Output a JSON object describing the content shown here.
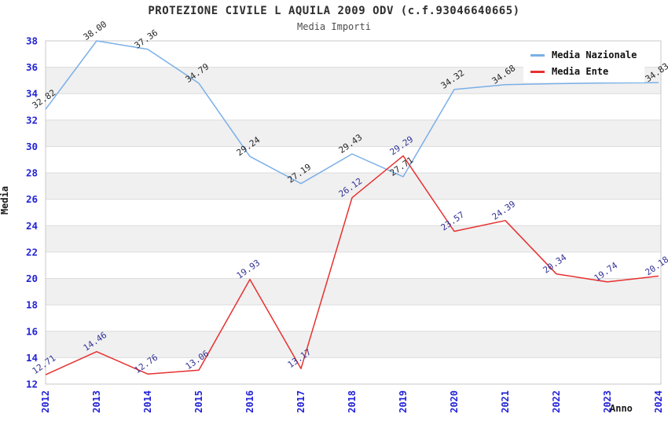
{
  "title": "PROTEZIONE CIVILE L AQUILA 2009 ODV (c.f.93046640665)",
  "subtitle": "Media Importi",
  "axes": {
    "y_label": "Media",
    "x_label": "Anno"
  },
  "legend": {
    "items": [
      {
        "label": "Media Nazionale",
        "color": "#7aafe8"
      },
      {
        "label": "Media Ente",
        "color": "#e83030"
      }
    ]
  },
  "colors": {
    "tick_label_blue": "#2323d7",
    "national_point_label": "#262626",
    "ente_point_label": "#323296",
    "band_gray": "#f0f0f0",
    "gridline": "#dcdcdc",
    "plot_border": "#c9c9c9"
  },
  "chart_data": {
    "type": "line",
    "title": "PROTEZIONE CIVILE L AQUILA 2009 ODV (c.f.93046640665)",
    "subtitle": "Media Importi",
    "xlabel": "Anno",
    "ylabel": "Media",
    "categories": [
      "2012",
      "2013",
      "2014",
      "2015",
      "2016",
      "2017",
      "2018",
      "2019",
      "2020",
      "2021",
      "2022",
      "2023",
      "2024"
    ],
    "ylim": [
      12,
      38
    ],
    "y_ticks": [
      12,
      14,
      16,
      18,
      20,
      22,
      24,
      26,
      28,
      30,
      32,
      34,
      36,
      38
    ],
    "grid": "horizontal-bands-alternating",
    "legend_position": "top-right",
    "series": [
      {
        "name": "Media Nazionale",
        "color": "#7aafe8",
        "label_color": "#262626",
        "values": [
          32.82,
          38.0,
          37.36,
          34.79,
          29.24,
          27.19,
          29.43,
          27.71,
          34.32,
          34.68,
          34.76,
          34.81,
          34.83
        ],
        "point_labels": [
          "32.82",
          "38.00",
          "37.36",
          "34.79",
          "29.24",
          "27.19",
          "29.43",
          "27.71",
          "34.32",
          "34.68",
          null,
          null,
          "34.83"
        ]
      },
      {
        "name": "Media Ente",
        "color": "#e83030",
        "label_color": "#323296",
        "values": [
          12.71,
          14.46,
          12.76,
          13.06,
          19.93,
          13.17,
          26.12,
          29.29,
          23.57,
          24.39,
          20.34,
          19.74,
          20.18
        ],
        "point_labels": [
          "12.71",
          "14.46",
          "12.76",
          "13.06",
          "19.93",
          "13.17",
          "26.12",
          "29.29",
          "23.57",
          "24.39",
          "20.34",
          "19.74",
          "20.18"
        ]
      }
    ]
  }
}
